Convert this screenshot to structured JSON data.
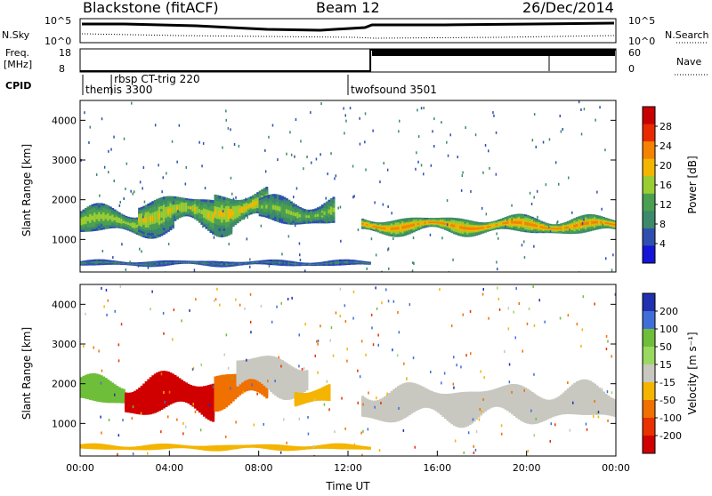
{
  "header": {
    "station": "Blackstone (fitACF)",
    "beam": "Beam 12",
    "date": "26/Dec/2014"
  },
  "top_panels": {
    "nsky_label": "N.Sky",
    "nsearch_label": "N.Search",
    "nsky_ticks": [
      "10^5",
      "10^0"
    ],
    "nsearch_ticks": [
      "10^5",
      "10^0"
    ],
    "freq_label_line1": "Freq.",
    "freq_label_line2": "[MHz]",
    "freq_ticks": [
      "18",
      "8"
    ],
    "nave_label": "Nave",
    "nave_ticks": [
      "60",
      "0"
    ],
    "cpid_label": "CPID",
    "cpid_entries": [
      {
        "name": "themis 3300",
        "start_hour": 0.0
      },
      {
        "name": "rbsp CT-trig 220",
        "start_hour": 1.4
      },
      {
        "name": "twofsound 3501",
        "start_hour": 12.0
      }
    ],
    "freq_series": {
      "x_hours": [
        0,
        13.0,
        13.0,
        24
      ],
      "values_mhz": [
        8,
        8,
        18,
        18
      ]
    }
  },
  "chart_data": [
    {
      "type": "heatmap",
      "title": "Power",
      "xlabel": "",
      "ylabel": "Slant Range [km]",
      "xlim": [
        0,
        24
      ],
      "ylim": [
        180,
        4500
      ],
      "yticks": [
        "1000",
        "2000",
        "3000",
        "4000"
      ],
      "colorbar": {
        "label": "Power [dB]",
        "ticks": [
          "4",
          "8",
          "12",
          "16",
          "20",
          "24",
          "28"
        ],
        "colors": [
          "#1515d8",
          "#2f4fb0",
          "#3d8a6a",
          "#4aa050",
          "#9acd32",
          "#f2b600",
          "#f58200",
          "#e82a00",
          "#c80000"
        ]
      },
      "echo_regions": [
        {
          "x0": 0.0,
          "x1": 4.2,
          "r_center": 1450,
          "r_width": 700,
          "power": 18
        },
        {
          "x0": 2.6,
          "x1": 6.8,
          "r_center": 1650,
          "r_width": 900,
          "power": 20
        },
        {
          "x0": 6.0,
          "x1": 8.4,
          "r_center": 1800,
          "r_width": 900,
          "power": 22
        },
        {
          "x0": 8.0,
          "x1": 11.4,
          "r_center": 1700,
          "r_width": 700,
          "power": 16
        },
        {
          "x0": 12.6,
          "x1": 24.0,
          "r_center": 1350,
          "r_width": 450,
          "power": 26
        },
        {
          "x0": 0.0,
          "x1": 13.0,
          "r_center": 400,
          "r_width": 150,
          "power": 8
        }
      ]
    },
    {
      "type": "heatmap",
      "title": "Velocity",
      "xlabel": "Time UT",
      "ylabel": "Slant Range [km]",
      "xlim": [
        0,
        24
      ],
      "ylim": [
        180,
        4500
      ],
      "xticks": [
        "00:00",
        "04:00",
        "08:00",
        "12:00",
        "16:00",
        "20:00",
        "00:00"
      ],
      "yticks": [
        "1000",
        "2000",
        "3000",
        "4000"
      ],
      "colorbar": {
        "label": "Velocity [m s⁻¹]",
        "ticks": [
          "200",
          "100",
          "50",
          "15",
          "-15",
          "-50",
          "-100",
          "-200"
        ],
        "colors": [
          "#2030b0",
          "#3f6ed8",
          "#6fbe3a",
          "#9ad860",
          "#c8c8c0",
          "#f4b400",
          "#f07000",
          "#e83000",
          "#d00000"
        ]
      },
      "echo_regions": [
        {
          "x0": 0.0,
          "x1": 2.0,
          "r_center": 1800,
          "r_width": 700,
          "velocity": 50
        },
        {
          "x0": 2.0,
          "x1": 6.0,
          "r_center": 1700,
          "r_width": 1000,
          "velocity": -200
        },
        {
          "x0": 6.0,
          "x1": 8.4,
          "r_center": 1900,
          "r_width": 900,
          "velocity": -100
        },
        {
          "x0": 7.0,
          "x1": 10.2,
          "r_center": 2200,
          "r_width": 1000,
          "velocity": 0
        },
        {
          "x0": 9.6,
          "x1": 11.2,
          "r_center": 1700,
          "r_width": 500,
          "velocity": -50
        },
        {
          "x0": 12.6,
          "x1": 24.0,
          "r_center": 1500,
          "r_width": 900,
          "velocity": 0
        },
        {
          "x0": 0.0,
          "x1": 13.0,
          "r_center": 400,
          "r_width": 150,
          "velocity": -50
        }
      ]
    }
  ]
}
